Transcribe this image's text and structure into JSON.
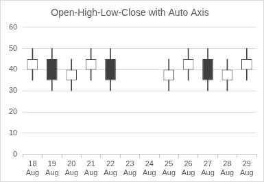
{
  "chart_data": {
    "type": "ohlc",
    "title": "Open-High-Low-Close with Auto Axis",
    "categories": [
      "18 Aug",
      "19 Aug",
      "20 Aug",
      "21 Aug",
      "22 Aug",
      "23 Aug",
      "24 Aug",
      "25 Aug",
      "26 Aug",
      "27 Aug",
      "28 Aug",
      "29 Aug"
    ],
    "open": [
      40,
      45,
      35,
      40,
      45,
      null,
      null,
      35,
      40,
      45,
      35,
      40
    ],
    "high": [
      50,
      50,
      45,
      50,
      50,
      null,
      null,
      45,
      50,
      50,
      45,
      50
    ],
    "low": [
      35,
      30,
      30,
      35,
      30,
      null,
      null,
      30,
      35,
      30,
      30,
      35
    ],
    "close": [
      45,
      35,
      40,
      45,
      35,
      null,
      null,
      40,
      45,
      35,
      40,
      45
    ],
    "color": "#404040",
    "ylim": [
      0,
      60
    ],
    "yticks": [
      0,
      10,
      20,
      30,
      40,
      50,
      60
    ],
    "grid": true
  }
}
